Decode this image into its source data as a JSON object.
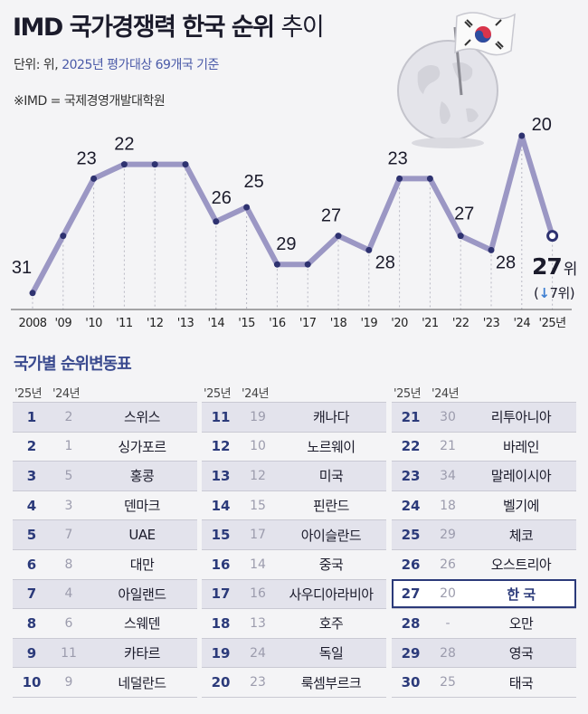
{
  "header": {
    "title": "IMD 국가경쟁력 한국 순위",
    "title_suffix": "추이",
    "unit_prefix": "단위: 위,",
    "unit_basis": "2025년 평가대상 69개국 기준",
    "note": "※IMD = 국제경영개발대학원"
  },
  "chart_data": {
    "type": "line",
    "x": [
      "2008",
      "'09",
      "'10",
      "'11",
      "'12",
      "'13",
      "'14",
      "'15",
      "'16",
      "'17",
      "'18",
      "'19",
      "'20",
      "'21",
      "'22",
      "'23",
      "'24",
      "'25년"
    ],
    "values": [
      31,
      null,
      23,
      22,
      null,
      null,
      26,
      25,
      29,
      null,
      27,
      28,
      23,
      null,
      27,
      28,
      20,
      27
    ],
    "inferred_values": [
      31,
      27,
      23,
      22,
      22,
      22,
      26,
      25,
      29,
      29,
      27,
      28,
      23,
      23,
      27,
      28,
      20,
      27
    ],
    "ylabel": "",
    "y_inverted": true,
    "line_color": "#9b97c4",
    "current_rank": "27",
    "current_rank_unit": "위",
    "change": "7위",
    "change_direction": "down"
  },
  "table": {
    "title": "국가별 순위변동표",
    "col_2025": "'25년",
    "col_2024": "'24년",
    "rows": [
      {
        "r25": "1",
        "r24": "2",
        "country": "스위스"
      },
      {
        "r25": "2",
        "r24": "1",
        "country": "싱가포르"
      },
      {
        "r25": "3",
        "r24": "5",
        "country": "홍콩"
      },
      {
        "r25": "4",
        "r24": "3",
        "country": "덴마크"
      },
      {
        "r25": "5",
        "r24": "7",
        "country": "UAE"
      },
      {
        "r25": "6",
        "r24": "8",
        "country": "대만"
      },
      {
        "r25": "7",
        "r24": "4",
        "country": "아일랜드"
      },
      {
        "r25": "8",
        "r24": "6",
        "country": "스웨덴"
      },
      {
        "r25": "9",
        "r24": "11",
        "country": "카타르"
      },
      {
        "r25": "10",
        "r24": "9",
        "country": "네덜란드"
      },
      {
        "r25": "11",
        "r24": "19",
        "country": "캐나다"
      },
      {
        "r25": "12",
        "r24": "10",
        "country": "노르웨이"
      },
      {
        "r25": "13",
        "r24": "12",
        "country": "미국"
      },
      {
        "r25": "14",
        "r24": "15",
        "country": "핀란드"
      },
      {
        "r25": "15",
        "r24": "17",
        "country": "아이슬란드"
      },
      {
        "r25": "16",
        "r24": "14",
        "country": "중국"
      },
      {
        "r25": "17",
        "r24": "16",
        "country": "사우디아라비아"
      },
      {
        "r25": "18",
        "r24": "13",
        "country": "호주"
      },
      {
        "r25": "19",
        "r24": "24",
        "country": "독일"
      },
      {
        "r25": "20",
        "r24": "23",
        "country": "룩셈부르크"
      },
      {
        "r25": "21",
        "r24": "30",
        "country": "리투아니아"
      },
      {
        "r25": "22",
        "r24": "21",
        "country": "바레인"
      },
      {
        "r25": "23",
        "r24": "34",
        "country": "말레이시아"
      },
      {
        "r25": "24",
        "r24": "18",
        "country": "벨기에"
      },
      {
        "r25": "25",
        "r24": "29",
        "country": "체코"
      },
      {
        "r25": "26",
        "r24": "26",
        "country": "오스트리아"
      },
      {
        "r25": "27",
        "r24": "20",
        "country": "한 국"
      },
      {
        "r25": "28",
        "r24": "-",
        "country": "오만"
      },
      {
        "r25": "29",
        "r24": "28",
        "country": "영국"
      },
      {
        "r25": "30",
        "r24": "25",
        "country": "태국"
      }
    ]
  }
}
